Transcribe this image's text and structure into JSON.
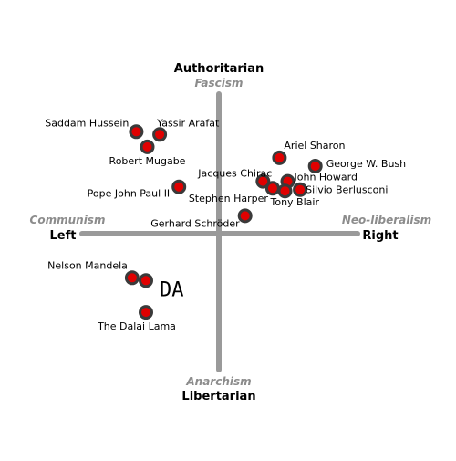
{
  "poles": {
    "top": "Authoritarian",
    "bottom": "Libertarian",
    "left": "Left",
    "right": "Right"
  },
  "ideologies": {
    "top": "Fascism",
    "bottom": "Anarchism",
    "left": "Communism",
    "right": "Neo-liberalism"
  },
  "marker_label": "DA",
  "colors": {
    "axis": "#9a9a9a",
    "dot_fill": "#e00000",
    "dot_ring": "#3a3a3a",
    "ideology_text": "#8c8c8c"
  },
  "chart_data": {
    "type": "scatter",
    "title": "",
    "xlabel": "",
    "ylabel": "",
    "xlim": [
      -10,
      10
    ],
    "ylim": [
      -10,
      10
    ],
    "grid": false,
    "points": [
      {
        "label": "Saddam Hussein",
        "x": -6.0,
        "y": 7.4
      },
      {
        "label": "Yassir Arafat",
        "x": -4.3,
        "y": 7.2
      },
      {
        "label": "Robert Mugabe",
        "x": -5.2,
        "y": 6.3
      },
      {
        "label": "Pope John Paul II",
        "x": -2.9,
        "y": 3.4
      },
      {
        "label": "Gerhard Schröder",
        "x": 1.9,
        "y": 1.3
      },
      {
        "label": "Ariel Sharon",
        "x": 4.4,
        "y": 5.5
      },
      {
        "label": "George W. Bush",
        "x": 7.0,
        "y": 4.9
      },
      {
        "label": "Jacques Chirac",
        "x": 3.2,
        "y": 3.8
      },
      {
        "label": "John Howard",
        "x": 5.0,
        "y": 3.8
      },
      {
        "label": "Stephen Harper",
        "x": 3.9,
        "y": 3.3
      },
      {
        "label": "Tony Blair",
        "x": 4.8,
        "y": 3.1
      },
      {
        "label": "Silvio Berlusconi",
        "x": 5.9,
        "y": 3.2
      },
      {
        "label": "Nelson Mandela",
        "x": -6.3,
        "y": -3.2
      },
      {
        "label": "The Dalai Lama",
        "x": -5.3,
        "y": -5.7
      },
      {
        "label": "DA",
        "x": -5.3,
        "y": -3.4
      }
    ]
  }
}
